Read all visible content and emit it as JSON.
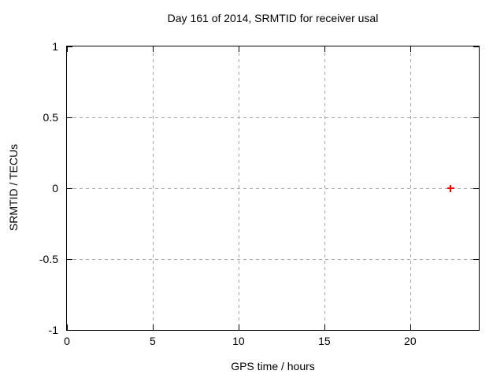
{
  "chart_data": {
    "type": "scatter",
    "title": "Day 161 of 2014, SRMTID for receiver usal",
    "xlabel": "GPS time / hours",
    "ylabel": "SRMTID / TECUs",
    "xlim": [
      0,
      24
    ],
    "ylim": [
      -1,
      1
    ],
    "grid": true,
    "legend": "none",
    "xticks": [
      {
        "value": 0,
        "label": "0"
      },
      {
        "value": 5,
        "label": "5"
      },
      {
        "value": 10,
        "label": "10"
      },
      {
        "value": 15,
        "label": "15"
      },
      {
        "value": 20,
        "label": "20"
      }
    ],
    "yticks": [
      {
        "value": -1,
        "label": "-1"
      },
      {
        "value": -0.5,
        "label": "-0.5"
      },
      {
        "value": 0,
        "label": "0"
      },
      {
        "value": 0.5,
        "label": "0.5"
      },
      {
        "value": 1,
        "label": "1"
      }
    ],
    "colors": {
      "background": "#ffffff",
      "axis": "#000000",
      "grid": "#a8a8a8",
      "point": "#ff0000"
    },
    "series": [
      {
        "name": "SRMTID",
        "marker": "plus",
        "color": "#ff0000",
        "points": [
          {
            "x": 22.35,
            "y": 0.0
          }
        ]
      }
    ]
  }
}
